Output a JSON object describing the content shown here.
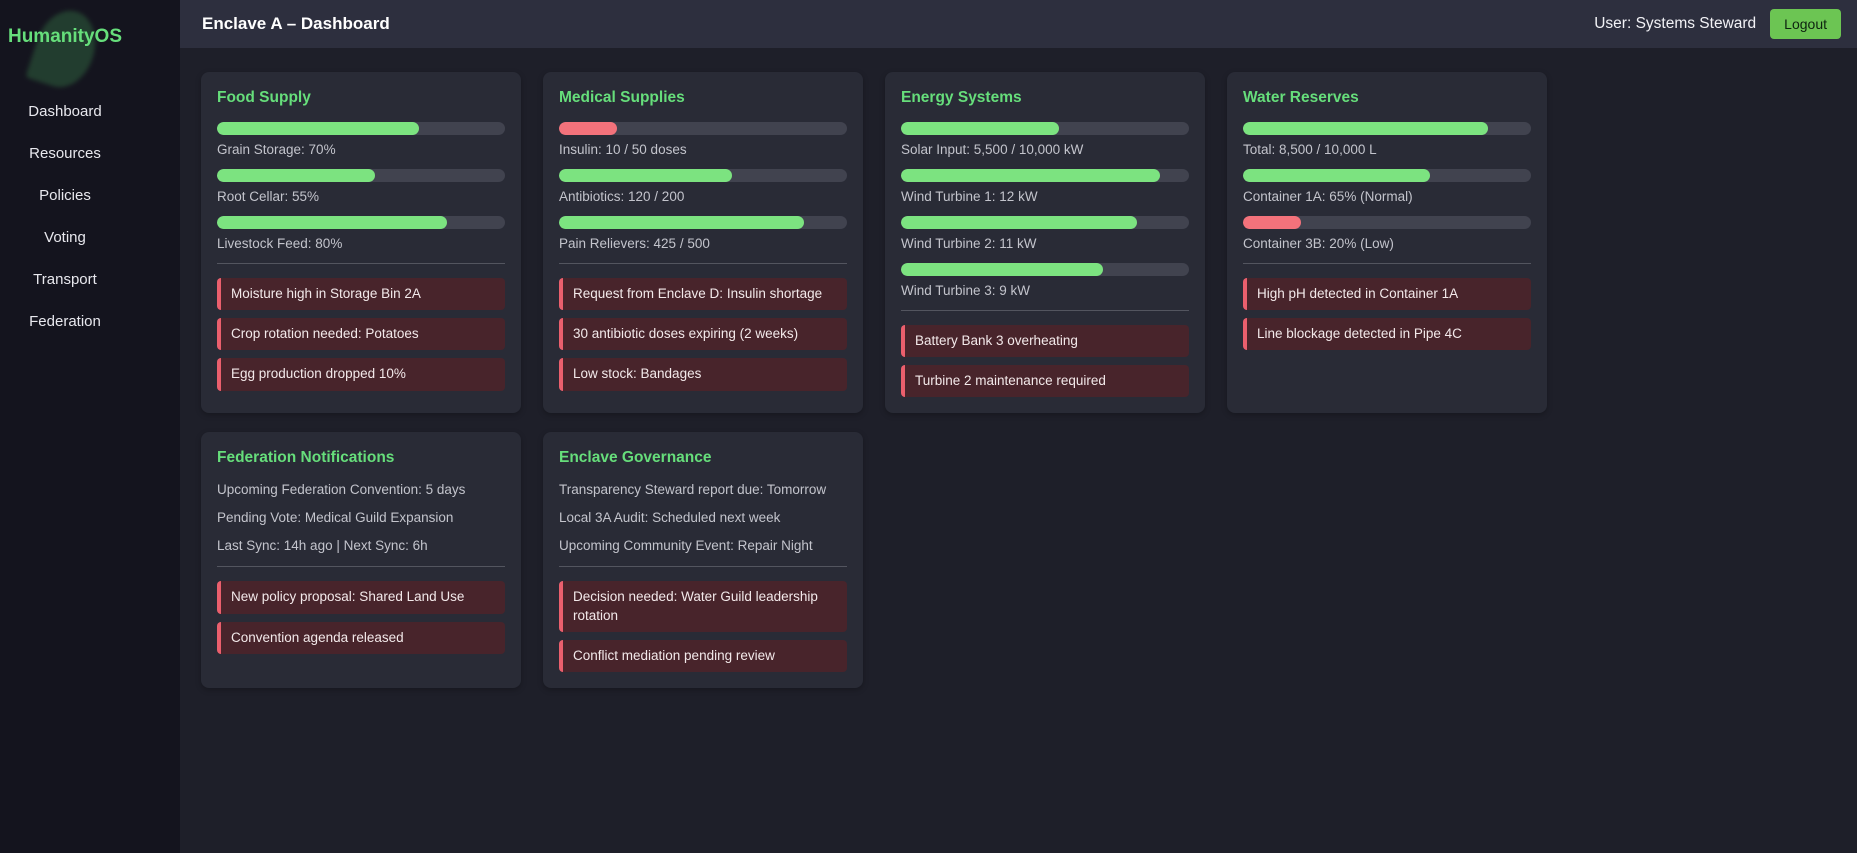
{
  "colors": {
    "accent_green": "#66de7b",
    "bar_green": "#7ce380",
    "bar_red": "#f3727b",
    "alert_bg": "#48242b",
    "alert_border": "#ea5f6d",
    "logout_bg": "#6cc553",
    "logout_text": "#0e2410"
  },
  "sidebar": {
    "logo": "HumanityOS",
    "nav": [
      {
        "label": "Dashboard"
      },
      {
        "label": "Resources"
      },
      {
        "label": "Policies"
      },
      {
        "label": "Voting"
      },
      {
        "label": "Transport"
      },
      {
        "label": "Federation"
      }
    ]
  },
  "header": {
    "title": "Enclave A – Dashboard",
    "user": "User: Systems Steward",
    "logout_label": "Logout"
  },
  "cards": [
    {
      "title": "Food Supply",
      "metrics": [
        {
          "label": "Grain Storage: 70%",
          "pct": 70,
          "color": "green"
        },
        {
          "label": "Root Cellar: 55%",
          "pct": 55,
          "color": "green"
        },
        {
          "label": "Livestock Feed: 80%",
          "pct": 80,
          "color": "green"
        }
      ],
      "alerts": [
        "Moisture high in Storage Bin 2A",
        "Crop rotation needed: Potatoes",
        "Egg production dropped 10%"
      ]
    },
    {
      "title": "Medical Supplies",
      "metrics": [
        {
          "label": "Insulin: 10 / 50 doses",
          "pct": 20,
          "color": "red"
        },
        {
          "label": "Antibiotics: 120 / 200",
          "pct": 60,
          "color": "green"
        },
        {
          "label": "Pain Relievers: 425 / 500",
          "pct": 85,
          "color": "green"
        }
      ],
      "alerts": [
        "Request from Enclave D: Insulin shortage",
        "30 antibiotic doses expiring (2 weeks)",
        "Low stock: Bandages"
      ]
    },
    {
      "title": "Energy Systems",
      "metrics": [
        {
          "label": "Solar Input: 5,500 / 10,000 kW",
          "pct": 55,
          "color": "green"
        },
        {
          "label": "Wind Turbine 1: 12 kW",
          "pct": 90,
          "color": "green"
        },
        {
          "label": "Wind Turbine 2: 11 kW",
          "pct": 82,
          "color": "green"
        },
        {
          "label": "Wind Turbine 3: 9 kW",
          "pct": 70,
          "color": "green"
        }
      ],
      "alerts": [
        "Battery Bank 3 overheating",
        "Turbine 2 maintenance required"
      ]
    },
    {
      "title": "Water Reserves",
      "metrics": [
        {
          "label": "Total: 8,500 / 10,000 L",
          "pct": 85,
          "color": "green"
        },
        {
          "label": "Container 1A: 65% (Normal)",
          "pct": 65,
          "color": "green"
        },
        {
          "label": "Container 3B: 20% (Low)",
          "pct": 20,
          "color": "red"
        }
      ],
      "alerts": [
        "High pH detected in Container 1A",
        "Line blockage detected in Pipe 4C"
      ]
    },
    {
      "title": "Federation Notifications",
      "info": [
        "Upcoming Federation Convention: 5 days",
        "Pending Vote: Medical Guild Expansion",
        "Last Sync: 14h ago | Next Sync: 6h"
      ],
      "alerts": [
        "New policy proposal: Shared Land Use",
        "Convention agenda released"
      ]
    },
    {
      "title": "Enclave Governance",
      "info": [
        "Transparency Steward report due: Tomorrow",
        "Local 3A Audit: Scheduled next week",
        "Upcoming Community Event: Repair Night"
      ],
      "alerts": [
        "Decision needed: Water Guild leadership rotation",
        "Conflict mediation pending review"
      ]
    }
  ]
}
